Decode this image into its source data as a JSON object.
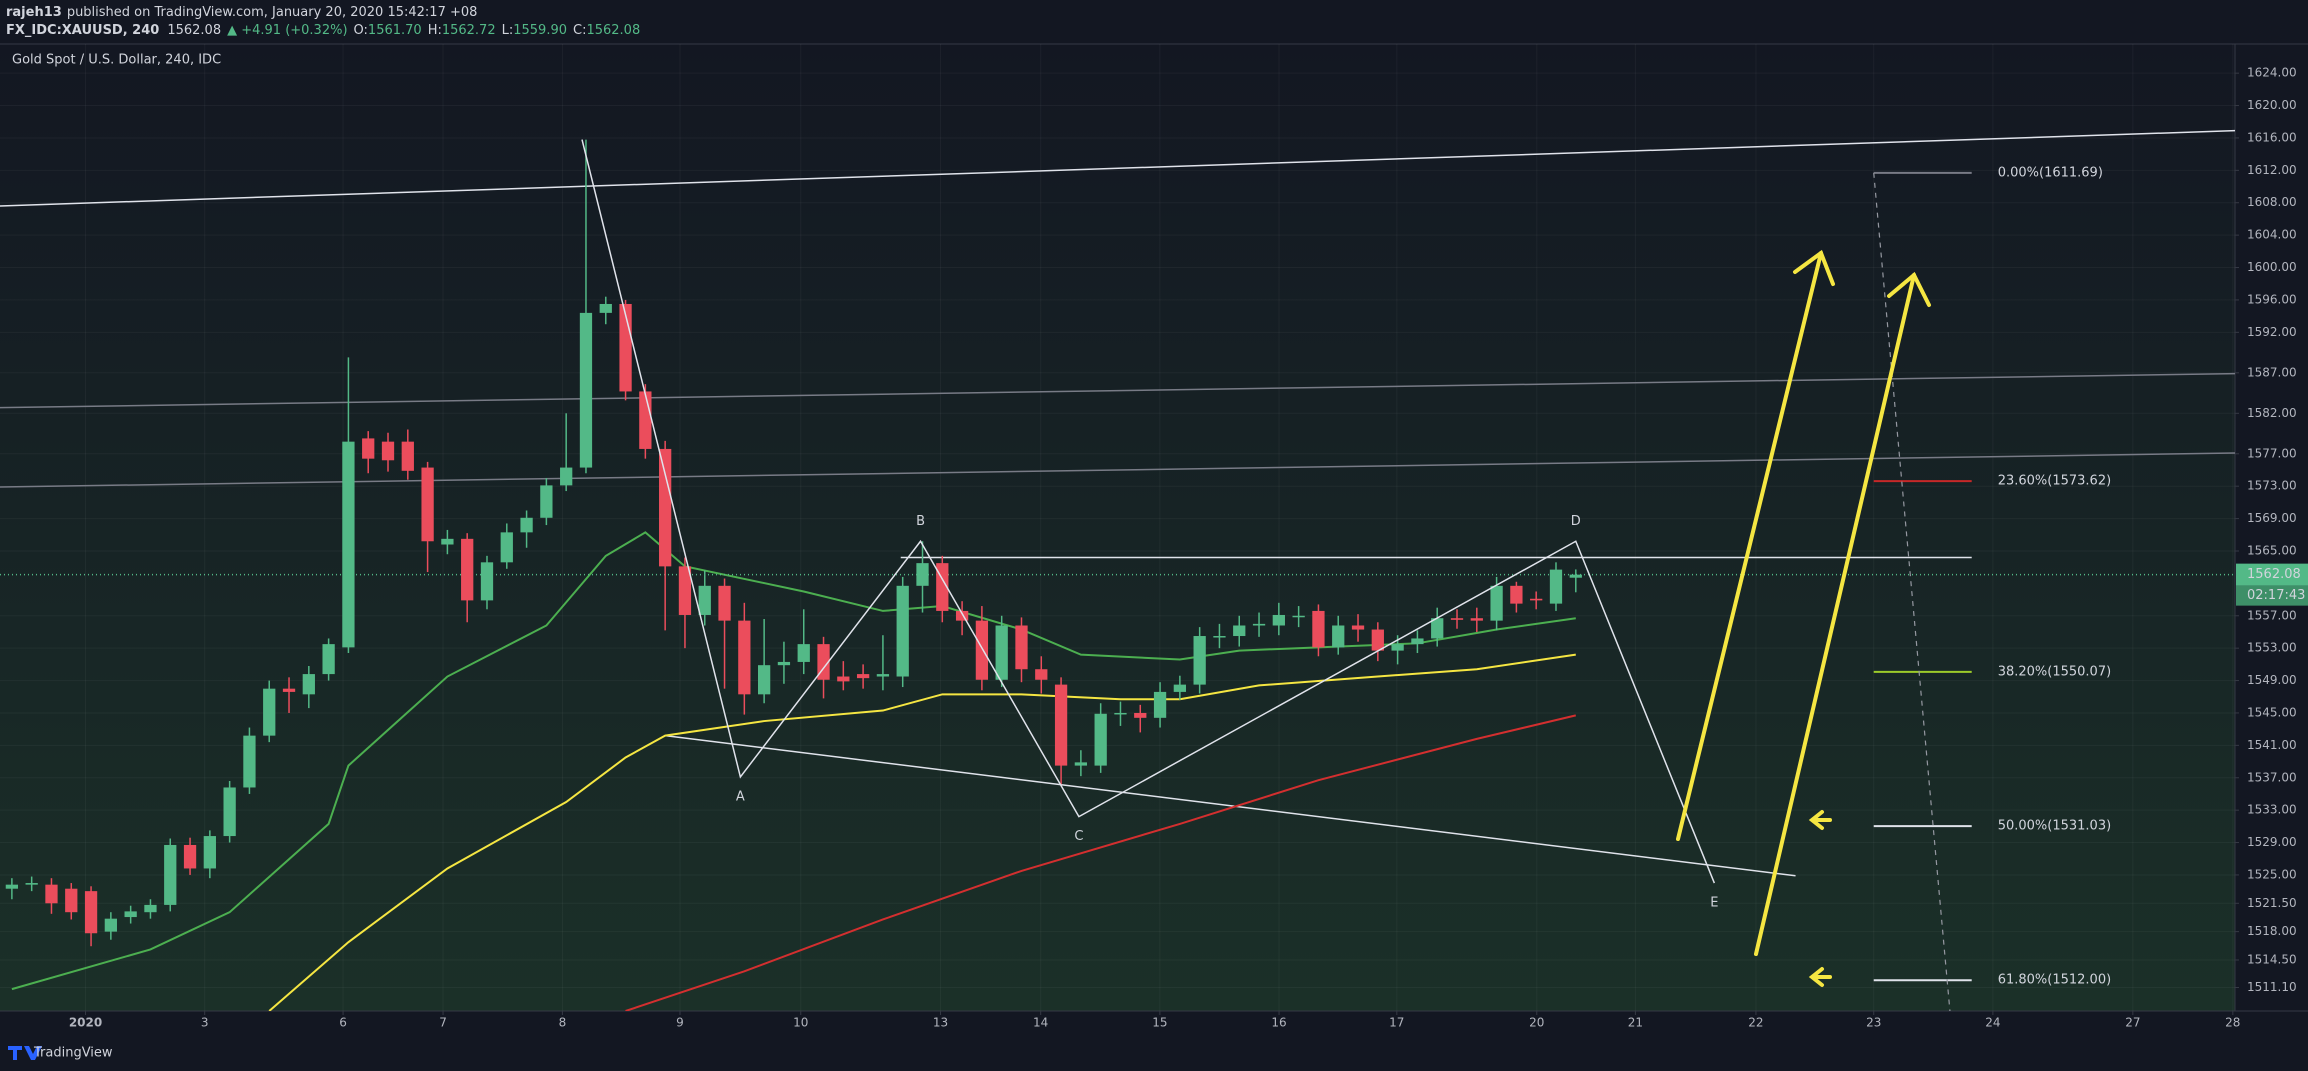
{
  "header": {
    "author": "rajeh13",
    "published": "published on TradingView.com, January 20, 2020 15:42:17 +08",
    "symbol": "FX_IDC:XAUUSD, 240",
    "price": "1562.08",
    "change": "▲ +4.91 (+0.32%)",
    "ohlc": [
      {
        "label": "O:",
        "value": "1561.70"
      },
      {
        "label": "H:",
        "value": "1562.72"
      },
      {
        "label": "L:",
        "value": "1559.90"
      },
      {
        "label": "C:",
        "value": "1562.08"
      }
    ]
  },
  "footer": {
    "brand": "TradingView"
  },
  "chart_data": {
    "type": "candlestick",
    "title": "Gold Spot / U.S. Dollar, 240, IDC",
    "up_color": "#53b987",
    "down_color": "#eb4d5c",
    "grid": true,
    "xlim": [
      -0.6,
      112.3
    ],
    "ylim": [
      1508.2,
      1627.6
    ],
    "xticks": [
      {
        "value": 3.72,
        "label": "2020"
      },
      {
        "value": 9.74,
        "label": "3"
      },
      {
        "value": 16.73,
        "label": "6"
      },
      {
        "value": 21.78,
        "label": "7"
      },
      {
        "value": 27.81,
        "label": "8"
      },
      {
        "value": 33.75,
        "label": "9"
      },
      {
        "value": 39.85,
        "label": "10"
      },
      {
        "value": 46.91,
        "label": "13"
      },
      {
        "value": 51.97,
        "label": "14"
      },
      {
        "value": 57.99,
        "label": "15"
      },
      {
        "value": 64.01,
        "label": "16"
      },
      {
        "value": 69.96,
        "label": "17"
      },
      {
        "value": 77.03,
        "label": "20"
      },
      {
        "value": 82.01,
        "label": "21"
      },
      {
        "value": 88.1,
        "label": "22"
      },
      {
        "value": 94.05,
        "label": "23"
      },
      {
        "value": 100.07,
        "label": "24"
      },
      {
        "value": 107.14,
        "label": "27"
      },
      {
        "value": 112.19,
        "label": "28"
      }
    ],
    "yticks": [
      {
        "value": 1511.1,
        "label": "1511.10"
      },
      {
        "value": 1514.5,
        "label": "1514.50"
      },
      {
        "value": 1518,
        "label": "1518.00"
      },
      {
        "value": 1521.5,
        "label": "1521.50"
      },
      {
        "value": 1525,
        "label": "1525.00"
      },
      {
        "value": 1529,
        "label": "1529.00"
      },
      {
        "value": 1533,
        "label": "1533.00"
      },
      {
        "value": 1537,
        "label": "1537.00"
      },
      {
        "value": 1541,
        "label": "1541.00"
      },
      {
        "value": 1545,
        "label": "1545.00"
      },
      {
        "value": 1549,
        "label": "1549.00"
      },
      {
        "value": 1553,
        "label": "1553.00"
      },
      {
        "value": 1557,
        "label": "1557.00"
      },
      {
        "value": 1565,
        "label": "1565.00"
      },
      {
        "value": 1569,
        "label": "1569.00"
      },
      {
        "value": 1573,
        "label": "1573.00"
      },
      {
        "value": 1577,
        "label": "1577.00"
      },
      {
        "value": 1582,
        "label": "1582.00"
      },
      {
        "value": 1587,
        "label": "1587.00"
      },
      {
        "value": 1592,
        "label": "1592.00"
      },
      {
        "value": 1596,
        "label": "1596.00"
      },
      {
        "value": 1600,
        "label": "1600.00"
      },
      {
        "value": 1604,
        "label": "1604.00"
      },
      {
        "value": 1608,
        "label": "1608.00"
      },
      {
        "value": 1612,
        "label": "1612.00"
      },
      {
        "value": 1616,
        "label": "1616.00"
      },
      {
        "value": 1620,
        "label": "1620.00"
      },
      {
        "value": 1624,
        "label": "1624.00"
      }
    ],
    "x": [
      0,
      1,
      2,
      3,
      4,
      5,
      6,
      7,
      8,
      9,
      10,
      11,
      12,
      13,
      14,
      15,
      16,
      17,
      18,
      19,
      20,
      21,
      22,
      23,
      24,
      25,
      26,
      27,
      28,
      29,
      30,
      31,
      32,
      33,
      34,
      35,
      36,
      37,
      38,
      39,
      40,
      41,
      42,
      43,
      44,
      45,
      46,
      47,
      48,
      49,
      50,
      51,
      52,
      53,
      54,
      55,
      56,
      57,
      58,
      59,
      60,
      61,
      62,
      63,
      64,
      65,
      66,
      67,
      68,
      69,
      70,
      71,
      72,
      73,
      74,
      75,
      76,
      77,
      78,
      79
    ],
    "open": [
      1523.3,
      1523.8,
      1523.8,
      1523.3,
      1523.0,
      1518.0,
      1519.8,
      1520.4,
      1521.3,
      1528.7,
      1525.8,
      1529.8,
      1535.8,
      1542.2,
      1548.0,
      1547.3,
      1549.8,
      1553.1,
      1578.9,
      1578.5,
      1578.5,
      1575.3,
      1565.8,
      1566.5,
      1558.9,
      1563.6,
      1567.3,
      1569.1,
      1573.1,
      1575.3,
      1594.4,
      1595.5,
      1584.7,
      1577.6,
      1563.1,
      1557.1,
      1560.7,
      1556.4,
      1547.3,
      1550.9,
      1551.3,
      1553.5,
      1549.5,
      1549.8,
      1549.5,
      1549.5,
      1560.7,
      1563.5,
      1557.6,
      1556.4,
      1549.1,
      1555.8,
      1550.4,
      1548.5,
      1538.5,
      1538.5,
      1545.0,
      1545.0,
      1544.4,
      1547.6,
      1548.5,
      1554.5,
      1554.5,
      1555.8,
      1555.8,
      1557.0,
      1557.6,
      1553.1,
      1555.8,
      1555.3,
      1552.7,
      1553.5,
      1554.2,
      1556.7,
      1556.7,
      1556.4,
      1560.7,
      1559.1,
      1558.5,
      1561.7
    ],
    "high": [
      1524.6,
      1524.8,
      1524.6,
      1524.0,
      1523.6,
      1520.4,
      1521.2,
      1522.0,
      1529.5,
      1529.6,
      1530.5,
      1536.6,
      1543.2,
      1549.0,
      1549.4,
      1550.8,
      1554.2,
      1588.9,
      1579.8,
      1579.6,
      1580.0,
      1576.0,
      1567.6,
      1567.2,
      1564.4,
      1568.4,
      1570.0,
      1574.0,
      1582.0,
      1615.8,
      1596.4,
      1596.0,
      1585.6,
      1578.6,
      1564.2,
      1562.6,
      1561.6,
      1558.6,
      1556.6,
      1553.8,
      1557.8,
      1554.4,
      1551.4,
      1551.0,
      1554.6,
      1561.8,
      1566.2,
      1564.4,
      1558.8,
      1558.2,
      1557.0,
      1556.8,
      1552.0,
      1549.4,
      1540.4,
      1546.2,
      1546.4,
      1546.0,
      1548.8,
      1549.6,
      1555.6,
      1556.0,
      1557.0,
      1557.4,
      1558.6,
      1558.2,
      1558.4,
      1557.0,
      1557.2,
      1556.2,
      1554.6,
      1555.2,
      1558.0,
      1557.8,
      1558.0,
      1561.8,
      1561.2,
      1560.0,
      1563.6,
      1562.72
    ],
    "low": [
      1522.0,
      1523.0,
      1520.2,
      1519.5,
      1516.2,
      1517.0,
      1519.0,
      1519.6,
      1520.5,
      1525.0,
      1524.6,
      1529.0,
      1535.0,
      1541.4,
      1545.0,
      1545.6,
      1549.0,
      1552.4,
      1574.6,
      1574.8,
      1573.8,
      1562.4,
      1564.6,
      1556.2,
      1557.8,
      1562.8,
      1565.4,
      1568.2,
      1572.4,
      1574.6,
      1593.0,
      1583.6,
      1576.4,
      1555.2,
      1553.0,
      1555.8,
      1548.0,
      1544.8,
      1546.2,
      1548.6,
      1549.8,
      1546.8,
      1547.8,
      1548.0,
      1547.8,
      1548.2,
      1557.4,
      1556.2,
      1554.6,
      1547.8,
      1548.2,
      1548.8,
      1547.4,
      1536.2,
      1537.2,
      1537.6,
      1543.4,
      1542.6,
      1543.2,
      1546.6,
      1547.4,
      1553.0,
      1553.2,
      1554.4,
      1554.6,
      1555.6,
      1552.0,
      1552.2,
      1553.8,
      1551.4,
      1551.0,
      1552.4,
      1553.2,
      1555.4,
      1555.0,
      1555.2,
      1557.4,
      1557.8,
      1557.6,
      1559.9
    ],
    "close": [
      1523.8,
      1524.0,
      1521.5,
      1520.4,
      1517.8,
      1519.6,
      1520.5,
      1521.3,
      1528.7,
      1525.8,
      1529.8,
      1535.8,
      1542.2,
      1548.0,
      1547.6,
      1549.8,
      1553.5,
      1578.5,
      1576.4,
      1576.2,
      1574.9,
      1566.2,
      1566.5,
      1558.9,
      1563.6,
      1567.3,
      1569.1,
      1573.1,
      1575.3,
      1594.4,
      1595.5,
      1584.7,
      1577.6,
      1563.1,
      1557.1,
      1560.7,
      1556.4,
      1547.3,
      1550.9,
      1551.3,
      1553.5,
      1549.1,
      1548.9,
      1549.3,
      1549.8,
      1560.7,
      1563.5,
      1557.6,
      1556.4,
      1549.1,
      1555.8,
      1550.4,
      1549.1,
      1538.5,
      1538.9,
      1544.9,
      1545.0,
      1544.4,
      1547.6,
      1548.5,
      1554.5,
      1554.5,
      1555.8,
      1556.0,
      1557.1,
      1557.0,
      1553.1,
      1555.8,
      1555.3,
      1552.7,
      1553.5,
      1554.2,
      1556.7,
      1556.5,
      1556.4,
      1560.7,
      1558.5,
      1558.9,
      1562.7,
      1562.08
    ],
    "lines": [
      {
        "color": "#4caf50",
        "x": [
          0,
          7,
          11,
          16,
          17,
          22,
          27,
          30,
          32,
          34,
          40,
          44,
          47,
          51,
          54,
          59,
          62,
          66,
          71,
          75,
          79
        ],
        "values": [
          1510.9,
          1515.8,
          1520.4,
          1531.3,
          1538.5,
          1549.5,
          1555.8,
          1564.4,
          1567.3,
          1563.1,
          1560.0,
          1557.6,
          1558.2,
          1555.3,
          1552.2,
          1551.6,
          1552.7,
          1553.1,
          1553.6,
          1555.3,
          1556.7
        ]
      },
      {
        "color": "#f5e642",
        "x": [
          13,
          17,
          22,
          28,
          31,
          33,
          38,
          44,
          47,
          51,
          56,
          59,
          63,
          69,
          74,
          79
        ],
        "values": [
          1508.2,
          1516.7,
          1525.8,
          1534.0,
          1539.5,
          1542.2,
          1544.0,
          1545.3,
          1547.3,
          1547.3,
          1546.7,
          1546.7,
          1548.4,
          1549.5,
          1550.4,
          1552.2
        ]
      },
      {
        "color": "#d32f2f",
        "x": [
          31,
          37,
          44,
          51,
          59,
          66,
          74,
          79
        ],
        "values": [
          1508.2,
          1513.1,
          1519.5,
          1525.5,
          1531.3,
          1536.7,
          1541.8,
          1544.7
        ]
      }
    ],
    "trend_lines": [
      {
        "color": "#e0e3eb",
        "x": [
          -0.6,
          112.3
        ],
        "values": [
          1607.6,
          1616.9
        ]
      },
      {
        "color": "#787b86",
        "x": [
          -0.6,
          112.3
        ],
        "values": [
          1582.7,
          1586.9
        ]
      },
      {
        "color": "#787b86",
        "x": [
          -0.6,
          112.3
        ],
        "values": [
          1572.9,
          1577.1
        ]
      },
      {
        "color": "#e0e3eb",
        "x": [
          44.9,
          99.0
        ],
        "values": [
          1564.2,
          1564.2
        ]
      },
      {
        "color": "#e0e3eb",
        "x": [
          33.0,
          90.1
        ],
        "values": [
          1542.2,
          1524.9
        ]
      }
    ],
    "pattern": {
      "color": "#e0e3eb",
      "x": [
        28.8,
        36.8,
        45.9,
        53.9,
        79.0,
        86.0
      ],
      "values": [
        1615.8,
        1537.1,
        1566.2,
        1532.2,
        1566.2,
        1524.0
      ],
      "labels": [
        null,
        "A",
        "B",
        "C",
        "D",
        "E"
      ]
    },
    "fib": {
      "x": [
        94.05,
        99.0
      ],
      "levels": [
        {
          "value": 1611.69,
          "label": "0.00%(1611.69)",
          "color": "#787b86"
        },
        {
          "value": 1573.62,
          "label": "23.60%(1573.62)",
          "color": "#c62828"
        },
        {
          "value": 1550.07,
          "label": "38.20%(1550.07)",
          "color": "#9ccc2a"
        },
        {
          "value": 1531.03,
          "label": "50.00%(1531.03)",
          "color": "#e0e3eb"
        },
        {
          "value": 1512.0,
          "label": "61.80%(1512.00)",
          "color": "#e0e3eb"
        }
      ],
      "diagonal": {
        "x": [
          94.05,
          97.9
        ],
        "values": [
          1611.69,
          1508.2
        ]
      }
    },
    "last_price": {
      "value": 1562.08,
      "label": "1562.08"
    },
    "countdown": "02:17:43"
  }
}
